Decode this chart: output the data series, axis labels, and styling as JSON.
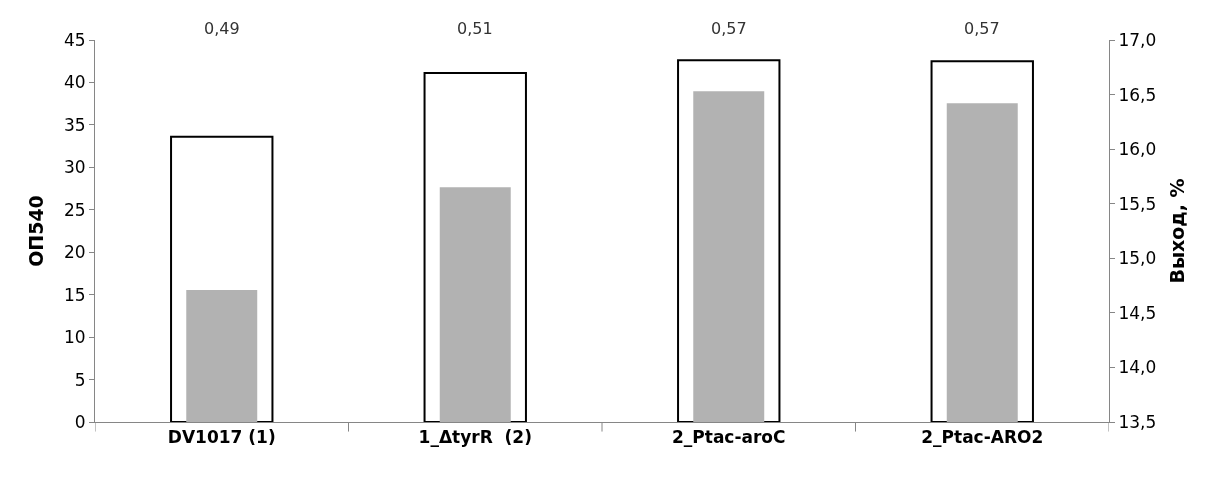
{
  "chart_data": {
    "type": "bar",
    "ylabel": "ОП540",
    "y2label": "Выход, %",
    "categories": [
      "DV1017 (1)",
      "1_ΔtyrR  (2)",
      "2_Ptac-aroC",
      "2_Ptac-ARO2"
    ],
    "series": [
      {
        "color": "#ffffff",
        "values": [
          33.6,
          41.1,
          42.6,
          42.5
        ]
      },
      {
        "color": "#b2b2b2",
        "axis": "y2",
        "values": [
          14.71,
          15.65,
          16.53,
          16.42
        ]
      }
    ],
    "annotations": [
      "0,49",
      "0,51",
      "0,57",
      "0,57"
    ],
    "ylim": [
      0,
      45
    ],
    "yticks": [
      0,
      5,
      10,
      15,
      20,
      25,
      30,
      35,
      40,
      45
    ],
    "y2lim": [
      13.5,
      17.0
    ],
    "y2ticks": [
      {
        "value": 13.5,
        "label": "13,5"
      },
      {
        "value": 14.0,
        "label": "14,0"
      },
      {
        "value": 14.5,
        "label": "14,5"
      },
      {
        "value": 15.0,
        "label": "15,0"
      },
      {
        "value": 15.5,
        "label": "15,5"
      },
      {
        "value": 16.0,
        "label": "16,0"
      },
      {
        "value": 16.5,
        "label": "16,5"
      },
      {
        "value": 17.0,
        "label": "17,0"
      }
    ]
  }
}
